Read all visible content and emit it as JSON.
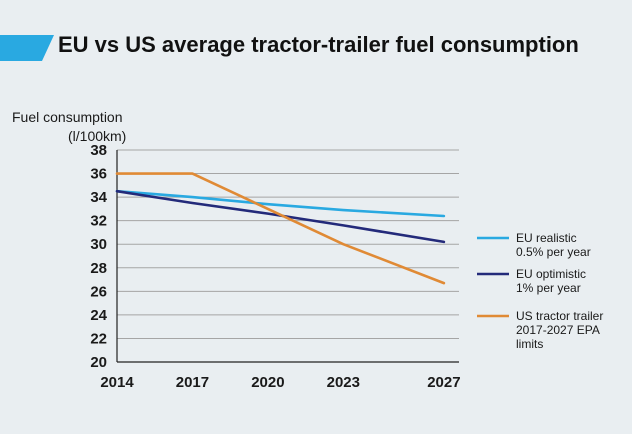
{
  "chart_data": {
    "type": "line",
    "title": "EU vs US average tractor-trailer fuel consumption",
    "ylabel": [
      "Fuel consumption",
      "(l/100km)"
    ],
    "xlabel": "",
    "x_ticks": [
      "2014",
      "2017",
      "2020",
      "2023",
      "2027"
    ],
    "xlim": [
      2014,
      2027.6
    ],
    "y_ticks": [
      "38",
      "36",
      "34",
      "32",
      "30",
      "28",
      "26",
      "24",
      "22",
      "20"
    ],
    "ylim": [
      20,
      38
    ],
    "grid": true,
    "legend_position": "right",
    "series": [
      {
        "name": [
          "EU realistic",
          "0.5% per year"
        ],
        "color": "#29a9e1",
        "x": [
          2014,
          2017,
          2020,
          2023,
          2027
        ],
        "y": [
          34.5,
          34.0,
          33.4,
          32.9,
          32.4
        ]
      },
      {
        "name": [
          "EU optimistic",
          "1% per year"
        ],
        "color": "#232a7a",
        "x": [
          2014,
          2017,
          2020,
          2023,
          2027
        ],
        "y": [
          34.5,
          33.5,
          32.6,
          31.6,
          30.2
        ]
      },
      {
        "name": [
          "US tractor trailer",
          "2017-2027 EPA",
          "limits"
        ],
        "color": "#e08a35",
        "x": [
          2014,
          2017,
          2020,
          2023,
          2027
        ],
        "y": [
          36.0,
          36.0,
          33.0,
          30.0,
          26.7
        ]
      }
    ]
  },
  "colors": {
    "accent": "#29a9e1",
    "background": "#e9eef1",
    "grid": "#a5a5a5"
  }
}
